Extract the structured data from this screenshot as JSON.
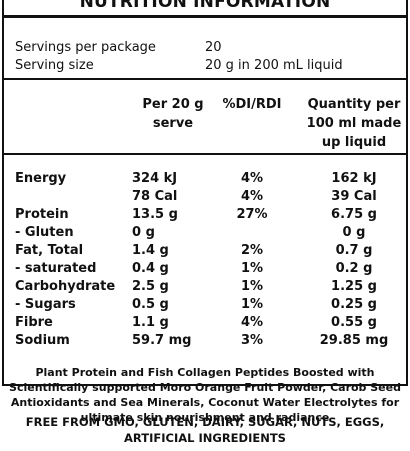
{
  "title": "NUTRITION INFORMATION",
  "servings": [
    {
      "label": "Servings per package",
      "value": "20"
    },
    {
      "label": "Serving size",
      "value": "20 g in 200 mL liquid"
    }
  ],
  "columns": [
    "Per 20 g serve",
    "%DI/RDI",
    "Quantity per 100 ml made up liquid"
  ],
  "rows": [
    {
      "label": "Energy",
      "per_serve": "324 kJ",
      "di": "4%",
      "per_100ml": "162 kJ"
    },
    {
      "label": "",
      "per_serve": "78 Cal",
      "di": "4%",
      "per_100ml": "39 Cal"
    },
    {
      "label": "Protein",
      "per_serve": "13.5 g",
      "di": "27%",
      "per_100ml": "6.75 g"
    },
    {
      "label": "- Gluten",
      "per_serve": "0 g",
      "di": "",
      "per_100ml": "0 g"
    },
    {
      "label": "Fat, Total",
      "per_serve": "1.4 g",
      "di": "2%",
      "per_100ml": "0.7 g"
    },
    {
      "label": "- saturated",
      "per_serve": "0.4 g",
      "di": "1%",
      "per_100ml": "0.2 g"
    },
    {
      "label": "Carbohydrate",
      "per_serve": "2.5 g",
      "di": "1%",
      "per_100ml": "1.25 g"
    },
    {
      "label": "- Sugars",
      "per_serve": "0.5 g",
      "di": "1%",
      "per_100ml": "0.25 g"
    },
    {
      "label": "Fibre",
      "per_serve": "1.1 g",
      "di": "4%",
      "per_100ml": "0.55 g"
    },
    {
      "label": "Sodium",
      "per_serve": "59.7 mg",
      "di": "3%",
      "per_100ml": "29.85 mg"
    }
  ],
  "description": "Plant Protein and Fish Collagen Peptides Boosted with Scientifically supported Moro Orange Fruit Powder, Carob Seed Antioxidants and Sea Minerals, Coconut Water Electrolytes for ultimate skin nourishment and radiance",
  "free_from": "FREE FROM GMO, GLUTEN, DAIRY, SUGAR, NUTS, EGGS, ARTIFICIAL INGREDIENTS"
}
